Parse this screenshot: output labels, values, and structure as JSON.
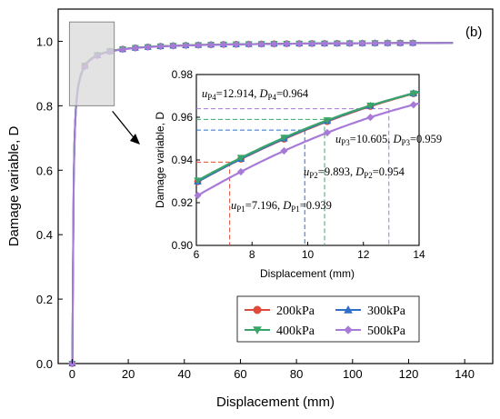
{
  "panel_label": "(b)",
  "colors": {
    "s200": "#e04a3a",
    "s300": "#2f6fc7",
    "s400": "#3aa56a",
    "s500": "#a87ad8",
    "highlight_box": "#d9d9d9"
  },
  "chart_data": [
    {
      "type": "line",
      "title": "",
      "xlabel": "Displacement (mm)",
      "ylabel": "Damage variable, D",
      "xlim": [
        -5,
        150
      ],
      "ylim": [
        0,
        1.1
      ],
      "xticks": [
        "0",
        "20",
        "40",
        "60",
        "80",
        "100",
        "120",
        "140"
      ],
      "yticks": [
        "0.0",
        "0.2",
        "0.4",
        "0.6",
        "0.8",
        "1.0"
      ],
      "x_end": 136,
      "legend_position": "bottom-right",
      "series": [
        {
          "name": "200kPa",
          "marker": "circle",
          "a": 0.262,
          "b": 1.0
        },
        {
          "name": "300kPa",
          "marker": "triangle-up",
          "a": 0.262,
          "b": 1.0
        },
        {
          "name": "400kPa",
          "marker": "triangle-down",
          "a": 0.26,
          "b": 1.0
        },
        {
          "name": "500kPa",
          "marker": "diamond",
          "a": 0.271,
          "b": 1.0
        }
      ],
      "highlight_region": {
        "x": [
          0,
          15
        ],
        "y": [
          0.8,
          1.06
        ]
      }
    },
    {
      "type": "line",
      "title": "",
      "xlabel": "Displacement (mm)",
      "ylabel": "Damage variable, D",
      "xlim": [
        6,
        14
      ],
      "ylim": [
        0.9,
        0.98
      ],
      "xticks": [
        "6",
        "8",
        "10",
        "12",
        "14"
      ],
      "yticks": [
        "0.90",
        "0.92",
        "0.94",
        "0.96",
        "0.98"
      ],
      "annotations": [
        {
          "u_sub": "P1",
          "u": "7.196",
          "d_sub": "P1",
          "d": "0.939",
          "x": 7.196,
          "y": 0.939,
          "color": "#e04a3a"
        },
        {
          "u_sub": "P2",
          "u": "9.893",
          "d_sub": "P2",
          "d": "0.954",
          "x": 9.893,
          "y": 0.954,
          "color": "#2f6fc7"
        },
        {
          "u_sub": "P3",
          "u": "10.605",
          "d_sub": "P3",
          "d": "0.959",
          "x": 10.605,
          "y": 0.959,
          "color": "#3aa56a"
        },
        {
          "u_sub": "P4",
          "u": "12.914",
          "d_sub": "P4",
          "d": "0.964",
          "x": 12.914,
          "y": 0.964,
          "color": "#a87ad8"
        }
      ]
    }
  ]
}
